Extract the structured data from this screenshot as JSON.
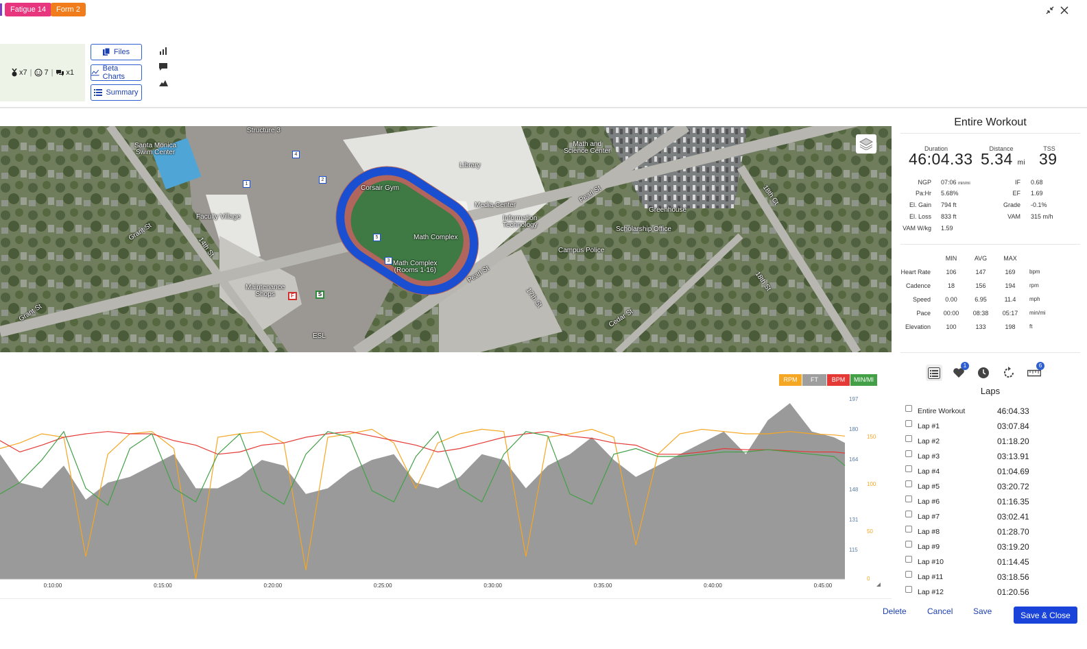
{
  "badges": {
    "fatigue": "Fatigue 14",
    "form": "Form 2"
  },
  "colors": {
    "fatigue": "#e8367e",
    "form": "#f07c1c",
    "primary": "#1a44d9",
    "rpm": "#f5a623",
    "ft": "#9e9e9e",
    "bpm": "#e53935",
    "minmi": "#43a047"
  },
  "window": {
    "collapse_icon": "collapse-icon",
    "close_icon": "close-icon"
  },
  "stats": {
    "medal_count": "x7",
    "smiley_count": "7",
    "comments_count": "x1"
  },
  "toolbar": {
    "files_label": "Files",
    "beta_charts_label": "Beta Charts",
    "summary_label": "Summary"
  },
  "side_icons": [
    "bar-chart-icon",
    "comment-icon",
    "mountain-icon"
  ],
  "map_labels": {
    "structure": "Structure 3",
    "santa_monica_swim": "Santa Monica\nSwim Center",
    "corsair_gym": "Corsair Gym",
    "library": "Library",
    "math_science": "Math and\nScience Center",
    "grant_st": "Grant St",
    "faculty_village": "Faculty Village",
    "fourteenth_st": "14th St",
    "media_center": "Media Center",
    "info_tech": "Information\nTechnology",
    "pearl_st": "Pearl St",
    "greenhouse": "Greenhouse",
    "scholarship": "Scholarship Office",
    "math_complex": "Math Complex",
    "math_complex_rooms": "Math Complex\n(Rooms 1-16)",
    "campus_police": "Campus Police",
    "maintenance": "Maintenance\nShops",
    "grant_st2": "Grant St",
    "pearl_st2": "Pearl St",
    "seventeenth_st": "17th St",
    "cedar_st": "Cedar St",
    "eighteenth_st": "18th St",
    "esl": "ESL",
    "eighteenth_ct": "18th Ct"
  },
  "route_markers": [
    "1",
    "2",
    "3",
    "4",
    "5"
  ],
  "route_start": "S",
  "route_finish": "F",
  "summary": {
    "title": "Entire Workout",
    "duration_label": "Duration",
    "duration_value": "46:04.33",
    "distance_label": "Distance",
    "distance_value": "5.34",
    "distance_unit": "mi",
    "tss_label": "TSS",
    "tss_value": "39",
    "metrics_left": [
      {
        "label": "NGP",
        "value": "07:06",
        "unit": "min/mi"
      },
      {
        "label": "Pa:Hr",
        "value": "5.68%",
        "unit": ""
      },
      {
        "label": "El. Gain",
        "value": "794 ft",
        "unit": ""
      },
      {
        "label": "El. Loss",
        "value": "833 ft",
        "unit": ""
      },
      {
        "label": "VAM W/kg",
        "value": "1.59",
        "unit": ""
      }
    ],
    "metrics_right": [
      {
        "label": "IF",
        "value": "0.68"
      },
      {
        "label": "EF",
        "value": "1.69"
      },
      {
        "label": "Grade",
        "value": "-0.1%"
      },
      {
        "label": "VAM",
        "value": "315 m/h"
      }
    ],
    "table_headers": [
      "MIN",
      "AVG",
      "MAX"
    ],
    "table_rows": [
      {
        "label": "Heart Rate",
        "min": "106",
        "avg": "147",
        "max": "169",
        "unit": "bpm"
      },
      {
        "label": "Cadence",
        "min": "18",
        "avg": "156",
        "max": "194",
        "unit": "rpm"
      },
      {
        "label": "Speed",
        "min": "0.00",
        "avg": "6.95",
        "max": "11.4",
        "unit": "mph"
      },
      {
        "label": "Pace",
        "min": "00:00",
        "avg": "08:38",
        "max": "05:17",
        "unit": "min/mi"
      },
      {
        "label": "Elevation",
        "min": "100",
        "avg": "133",
        "max": "198",
        "unit": "ft"
      }
    ]
  },
  "tabs": {
    "icons": [
      "list-icon",
      "heart-icon",
      "clock-icon",
      "refresh-icon",
      "ruler-icon"
    ],
    "heart_badge": "1",
    "ruler_badge": "6"
  },
  "laps": {
    "title": "Laps",
    "rows": [
      {
        "name": "Entire Workout",
        "time": "46:04.33"
      },
      {
        "name": "Lap #1",
        "time": "03:07.84"
      },
      {
        "name": "Lap #2",
        "time": "01:18.20"
      },
      {
        "name": "Lap #3",
        "time": "03:13.91"
      },
      {
        "name": "Lap #4",
        "time": "01:04.69"
      },
      {
        "name": "Lap #5",
        "time": "03:20.72"
      },
      {
        "name": "Lap #6",
        "time": "01:16.35"
      },
      {
        "name": "Lap #7",
        "time": "03:02.41"
      },
      {
        "name": "Lap #8",
        "time": "01:28.70"
      },
      {
        "name": "Lap #9",
        "time": "03:19.20"
      },
      {
        "name": "Lap #10",
        "time": "01:14.45"
      },
      {
        "name": "Lap #11",
        "time": "03:18.56"
      },
      {
        "name": "Lap #12",
        "time": "01:20.56"
      }
    ]
  },
  "actions": {
    "delete": "Delete",
    "cancel": "Cancel",
    "save": "Save",
    "save_close": "Save & Close"
  },
  "chart_data": {
    "type": "line",
    "legend": [
      "RPM",
      "FT",
      "BPM",
      "MIN/MI"
    ],
    "x_ticks": [
      "0:10:00",
      "0:15:00",
      "0:20:00",
      "0:25:00",
      "0:30:00",
      "0:35:00",
      "0:40:00",
      "0:45:00"
    ],
    "y_left_ticks": [
      "197",
      "180",
      "164",
      "148",
      "131",
      "115"
    ],
    "y_right_ticks": [
      "150",
      "100",
      "50",
      "0"
    ],
    "x": [
      7.6,
      8.5,
      9.5,
      10.5,
      11.5,
      12.5,
      13.5,
      14.5,
      15.5,
      16.5,
      17.5,
      18.5,
      19.5,
      20.5,
      21.5,
      22.5,
      23.5,
      24.5,
      25.5,
      26.5,
      27.5,
      28.5,
      29.5,
      30.5,
      31.5,
      32.5,
      33.5,
      34.5,
      35.5,
      36.5,
      37.5,
      38.5,
      39.5,
      40.5,
      41.5,
      42.5,
      43.5,
      44.5,
      45.5,
      46.0
    ],
    "series": [
      {
        "name": "RPM",
        "values": [
          155,
          160,
          168,
          165,
          60,
          150,
          168,
          170,
          155,
          40,
          165,
          168,
          170,
          160,
          48,
          165,
          168,
          172,
          160,
          120,
          160,
          168,
          172,
          170,
          60,
          165,
          168,
          172,
          165,
          70,
          150,
          168,
          172,
          170,
          168,
          168,
          170,
          168,
          167,
          166
        ]
      },
      {
        "name": "FT",
        "values": [
          150,
          125,
          120,
          140,
          110,
          125,
          130,
          140,
          150,
          120,
          120,
          130,
          145,
          140,
          115,
          120,
          135,
          145,
          150,
          125,
          120,
          130,
          150,
          145,
          120,
          140,
          150,
          165,
          145,
          130,
          140,
          150,
          160,
          170,
          150,
          180,
          195,
          170,
          165,
          160
        ]
      },
      {
        "name": "BPM",
        "values": [
          162,
          152,
          158,
          165,
          168,
          170,
          168,
          168,
          162,
          158,
          150,
          152,
          158,
          160,
          165,
          168,
          170,
          166,
          162,
          158,
          152,
          155,
          160,
          165,
          168,
          170,
          166,
          164,
          160,
          158,
          150,
          150,
          152,
          155,
          154,
          154,
          153,
          152,
          152,
          151
        ]
      },
      {
        "name": "MIN/MI",
        "values": [
          115,
          125,
          145,
          170,
          120,
          105,
          155,
          168,
          120,
          108,
          150,
          168,
          118,
          106,
          150,
          170,
          165,
          118,
          108,
          148,
          170,
          120,
          108,
          150,
          170,
          166,
          115,
          106,
          150,
          155,
          148,
          148,
          150,
          152,
          152,
          154,
          152,
          150,
          148,
          140
        ]
      }
    ]
  }
}
